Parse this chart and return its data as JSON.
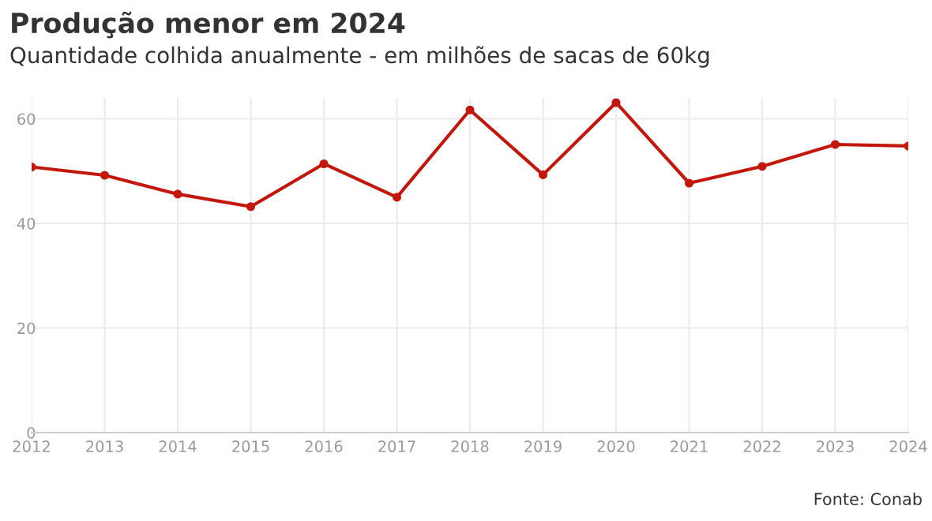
{
  "chart_data": {
    "type": "line",
    "title": "Produção menor em 2024",
    "subtitle": "Quantidade colhida anualmente - em milhões de sacas de 60kg",
    "x": [
      2012,
      2013,
      2014,
      2015,
      2016,
      2017,
      2018,
      2019,
      2020,
      2021,
      2022,
      2023,
      2024
    ],
    "series": [
      {
        "color": "#c4170c",
        "values": [
          50.8,
          49.2,
          45.6,
          43.2,
          51.4,
          45.0,
          61.7,
          49.3,
          63.1,
          47.7,
          50.9,
          55.1,
          54.8
        ]
      }
    ],
    "xlim": [
      2012,
      2024
    ],
    "xticks": [
      2012,
      2013,
      2014,
      2015,
      2016,
      2017,
      2018,
      2019,
      2020,
      2021,
      2022,
      2023,
      2024
    ],
    "ylim": [
      0,
      64
    ],
    "yticks": [
      0,
      20,
      40,
      60
    ],
    "grid": true,
    "marker": "circle",
    "line_style": "solid",
    "annotations": [
      "Fonte: Conab"
    ]
  }
}
